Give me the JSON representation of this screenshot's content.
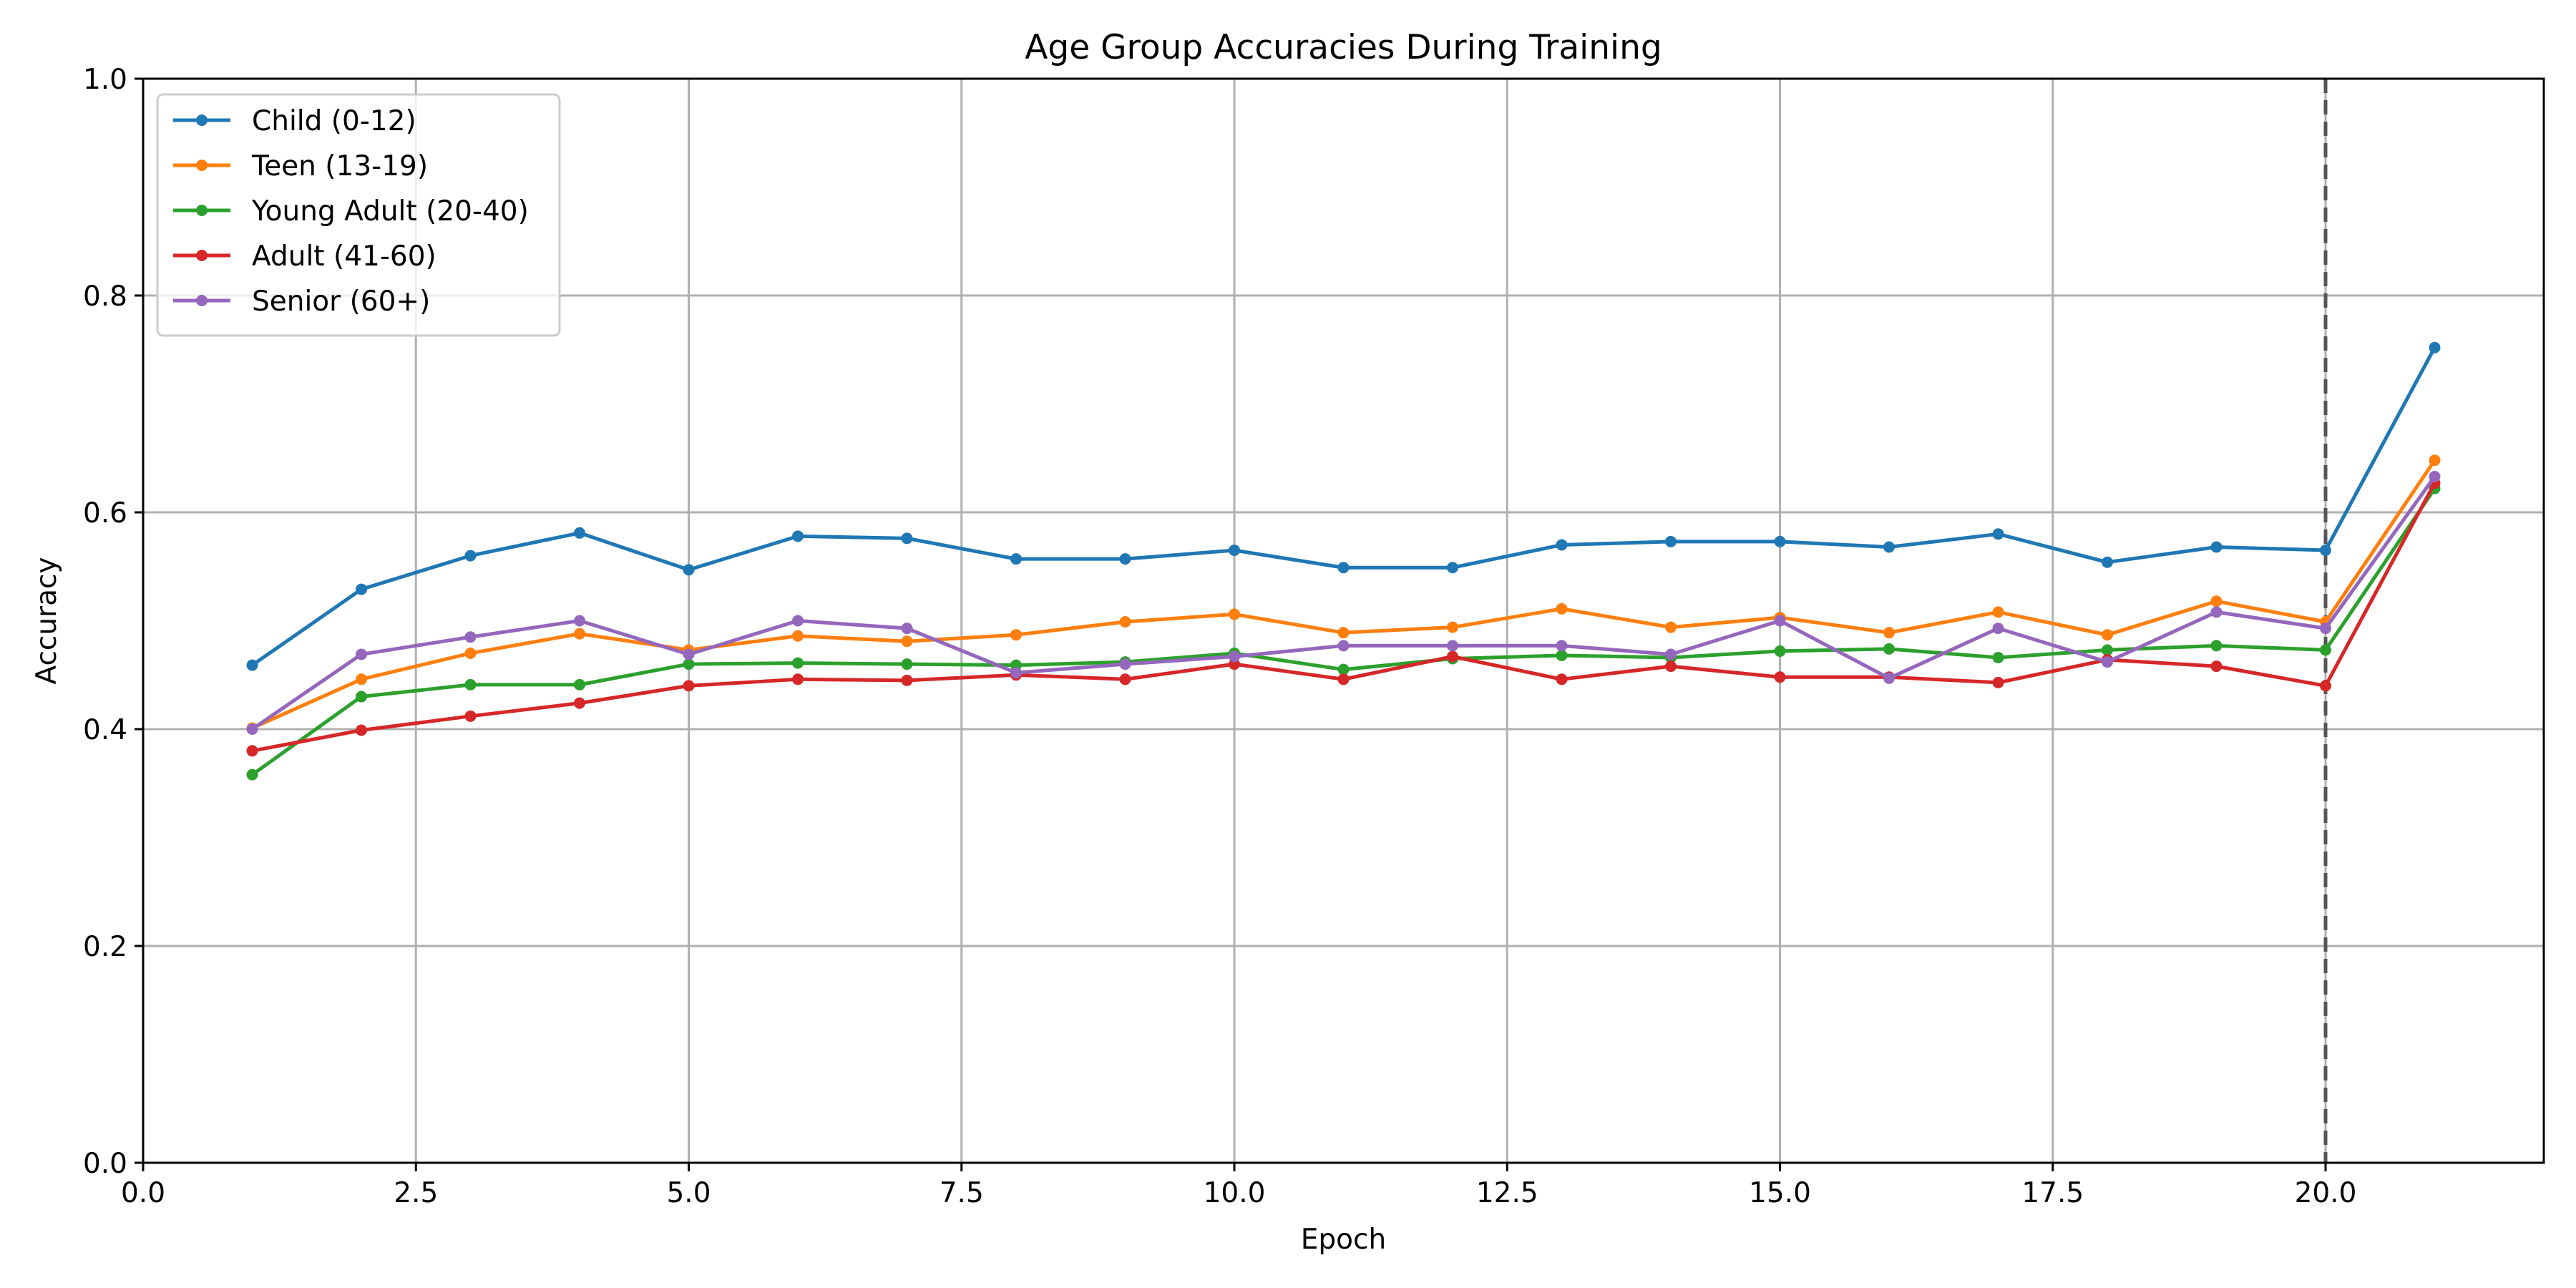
{
  "chart_data": {
    "type": "line",
    "title": "Age Group Accuracies During Training",
    "xlabel": "Epoch",
    "ylabel": "Accuracy",
    "xlim": [
      0,
      22
    ],
    "ylim": [
      0,
      1
    ],
    "x_ticks": [
      0.0,
      2.5,
      5.0,
      7.5,
      10.0,
      12.5,
      15.0,
      17.5,
      20.0
    ],
    "x_tick_labels": [
      "0.0",
      "2.5",
      "5.0",
      "7.5",
      "10.0",
      "12.5",
      "15.0",
      "17.5",
      "20.0"
    ],
    "y_ticks": [
      0.0,
      0.2,
      0.4,
      0.6,
      0.8,
      1.0
    ],
    "y_tick_labels": [
      "0.0",
      "0.2",
      "0.4",
      "0.6",
      "0.8",
      "1.0"
    ],
    "grid": true,
    "legend_position": "top-left",
    "vertical_line": {
      "x": 20,
      "style": "dashed",
      "color": "#555555"
    },
    "x": [
      1,
      2,
      3,
      4,
      5,
      6,
      7,
      8,
      9,
      10,
      11,
      12,
      13,
      14,
      15,
      16,
      17,
      18,
      19,
      20,
      21
    ],
    "series": [
      {
        "name": "Child (0-12)",
        "color": "#1f77b4",
        "values": [
          0.459,
          0.529,
          0.56,
          0.581,
          0.547,
          0.578,
          0.576,
          0.557,
          0.557,
          0.565,
          0.549,
          0.549,
          0.57,
          0.573,
          0.573,
          0.568,
          0.58,
          0.554,
          0.568,
          0.565,
          0.752
        ]
      },
      {
        "name": "Teen (13-19)",
        "color": "#ff7f0e",
        "values": [
          0.401,
          0.446,
          0.47,
          0.488,
          0.473,
          0.486,
          0.481,
          0.487,
          0.499,
          0.506,
          0.489,
          0.494,
          0.511,
          0.494,
          0.503,
          0.489,
          0.508,
          0.487,
          0.518,
          0.499,
          0.648
        ]
      },
      {
        "name": "Young Adult (20-40)",
        "color": "#2ca02c",
        "values": [
          0.358,
          0.43,
          0.441,
          0.441,
          0.46,
          0.461,
          0.46,
          0.459,
          0.462,
          0.47,
          0.455,
          0.465,
          0.468,
          0.466,
          0.472,
          0.474,
          0.466,
          0.473,
          0.477,
          0.473,
          0.622
        ]
      },
      {
        "name": "Adult (41-60)",
        "color": "#d62728",
        "values": [
          0.38,
          0.399,
          0.412,
          0.424,
          0.44,
          0.446,
          0.445,
          0.45,
          0.446,
          0.46,
          0.446,
          0.467,
          0.446,
          0.458,
          0.448,
          0.448,
          0.443,
          0.464,
          0.458,
          0.44,
          0.627
        ]
      },
      {
        "name": "Senior (60+)",
        "color": "#9467bd",
        "values": [
          0.4,
          0.469,
          0.485,
          0.5,
          0.469,
          0.5,
          0.493,
          0.452,
          0.46,
          0.467,
          0.477,
          0.477,
          0.477,
          0.469,
          0.5,
          0.447,
          0.493,
          0.462,
          0.508,
          0.493,
          0.633
        ]
      }
    ]
  }
}
